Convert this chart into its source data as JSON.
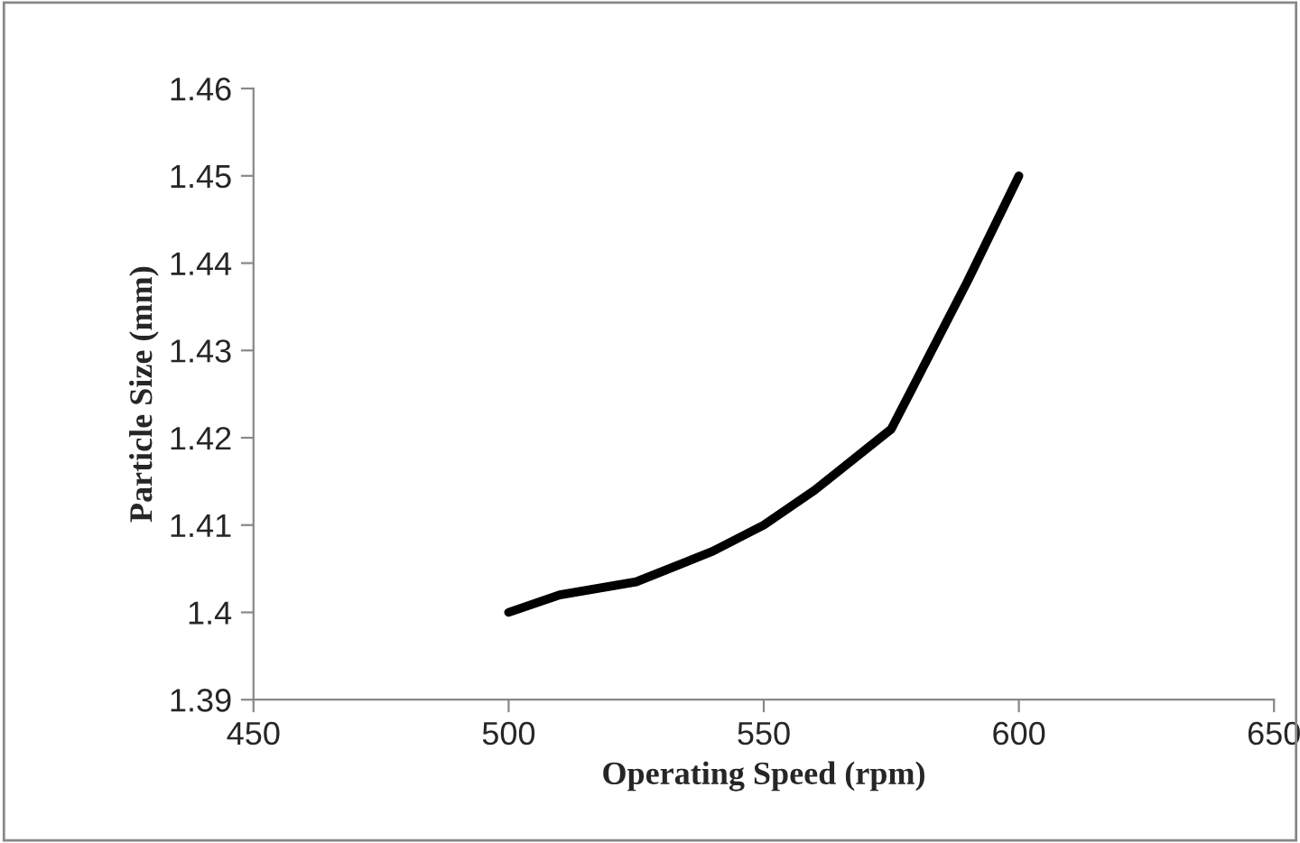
{
  "chart_data": {
    "type": "line",
    "xlabel": "Operating Speed (rpm)",
    "ylabel": "Particle Size (mm)",
    "x": [
      500,
      510,
      525,
      540,
      550,
      560,
      575,
      590,
      600
    ],
    "series": [
      {
        "color": "#000000",
        "values": [
          1.4,
          1.402,
          1.4035,
          1.407,
          1.41,
          1.414,
          1.421,
          1.438,
          1.45
        ]
      }
    ],
    "xlim": [
      450,
      650
    ],
    "xticks": [
      450,
      500,
      550,
      600,
      650
    ],
    "ylim": [
      1.39,
      1.46
    ],
    "yticks": [
      {
        "value": 1.39,
        "label": "1.39"
      },
      {
        "value": 1.4,
        "label": "1.4"
      },
      {
        "value": 1.41,
        "label": "1.41"
      },
      {
        "value": 1.42,
        "label": "1.42"
      },
      {
        "value": 1.43,
        "label": "1.43"
      },
      {
        "value": 1.44,
        "label": "1.44"
      },
      {
        "value": 1.45,
        "label": "1.45"
      },
      {
        "value": 1.46,
        "label": "1.46"
      }
    ],
    "grid": false,
    "legend": false,
    "marker": "none",
    "line_style": "solid"
  }
}
